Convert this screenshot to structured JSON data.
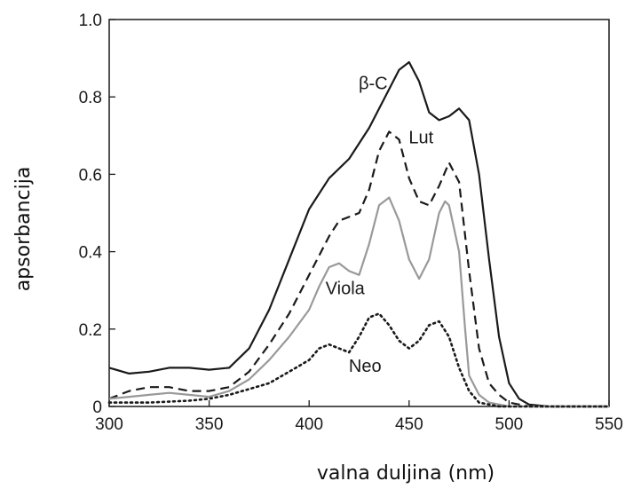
{
  "chart_data": {
    "type": "line",
    "xlabel": "valna duljina (nm)",
    "ylabel": "apsorbancija",
    "xlim": [
      300,
      550
    ],
    "ylim": [
      0,
      1.0
    ],
    "xticks": [
      "300",
      "350",
      "400",
      "450",
      "500",
      "550"
    ],
    "yticks": [
      "0",
      "0.2",
      "0.4",
      "0.6",
      "0.8",
      "1.0"
    ],
    "grid": false,
    "legend": "inline labels",
    "series": [
      {
        "name": "β-C",
        "color": "#1a1a1a",
        "style": "solid",
        "x": [
          300,
          310,
          320,
          330,
          340,
          350,
          360,
          370,
          380,
          390,
          400,
          410,
          420,
          430,
          440,
          445,
          450,
          455,
          460,
          465,
          470,
          475,
          480,
          485,
          490,
          495,
          500,
          505,
          510,
          520,
          530,
          540,
          550
        ],
        "y": [
          0.1,
          0.085,
          0.09,
          0.1,
          0.1,
          0.095,
          0.1,
          0.15,
          0.25,
          0.38,
          0.51,
          0.59,
          0.64,
          0.72,
          0.82,
          0.87,
          0.89,
          0.84,
          0.76,
          0.74,
          0.75,
          0.77,
          0.74,
          0.6,
          0.38,
          0.18,
          0.06,
          0.02,
          0.005,
          0.0,
          0.0,
          0.0,
          0.0
        ]
      },
      {
        "name": "Lut",
        "color": "#1a1a1a",
        "style": "dashed",
        "x": [
          300,
          310,
          320,
          330,
          340,
          350,
          360,
          370,
          380,
          390,
          400,
          410,
          415,
          420,
          425,
          430,
          435,
          440,
          445,
          450,
          455,
          460,
          465,
          470,
          475,
          480,
          485,
          490,
          495,
          500,
          510,
          520,
          550
        ],
        "y": [
          0.02,
          0.04,
          0.05,
          0.05,
          0.04,
          0.04,
          0.05,
          0.09,
          0.16,
          0.24,
          0.34,
          0.44,
          0.48,
          0.49,
          0.5,
          0.56,
          0.66,
          0.71,
          0.69,
          0.59,
          0.53,
          0.52,
          0.57,
          0.63,
          0.58,
          0.35,
          0.15,
          0.06,
          0.03,
          0.01,
          0.0,
          0.0,
          0.0
        ]
      },
      {
        "name": "Viola",
        "color": "#999999",
        "style": "solid",
        "x": [
          300,
          310,
          320,
          330,
          340,
          350,
          360,
          370,
          380,
          390,
          400,
          405,
          410,
          415,
          420,
          425,
          430,
          435,
          440,
          445,
          450,
          455,
          460,
          465,
          468,
          470,
          475,
          478,
          480,
          485,
          490,
          500,
          550
        ],
        "y": [
          0.02,
          0.025,
          0.03,
          0.035,
          0.03,
          0.025,
          0.04,
          0.07,
          0.12,
          0.18,
          0.25,
          0.31,
          0.36,
          0.37,
          0.35,
          0.34,
          0.42,
          0.52,
          0.54,
          0.48,
          0.38,
          0.33,
          0.38,
          0.5,
          0.53,
          0.52,
          0.4,
          0.2,
          0.08,
          0.03,
          0.01,
          0.0,
          0.0
        ]
      },
      {
        "name": "Neo",
        "color": "#1a1a1a",
        "style": "dotted",
        "x": [
          300,
          320,
          340,
          350,
          360,
          370,
          380,
          390,
          400,
          405,
          410,
          415,
          420,
          425,
          430,
          435,
          440,
          445,
          450,
          455,
          460,
          465,
          470,
          475,
          480,
          485,
          490,
          495,
          500,
          550
        ],
        "y": [
          0.01,
          0.01,
          0.015,
          0.02,
          0.03,
          0.045,
          0.06,
          0.09,
          0.12,
          0.15,
          0.16,
          0.15,
          0.14,
          0.18,
          0.23,
          0.24,
          0.21,
          0.17,
          0.15,
          0.17,
          0.21,
          0.22,
          0.18,
          0.1,
          0.04,
          0.01,
          0.005,
          0.0,
          0.0,
          0.0
        ]
      }
    ],
    "annotations": [
      {
        "text": "β-C",
        "x": 432,
        "y": 0.82
      },
      {
        "text": "Lut",
        "x": 456,
        "y": 0.68
      },
      {
        "text": "Viola",
        "x": 418,
        "y": 0.29
      },
      {
        "text": "Neo",
        "x": 428,
        "y": 0.09
      }
    ]
  }
}
